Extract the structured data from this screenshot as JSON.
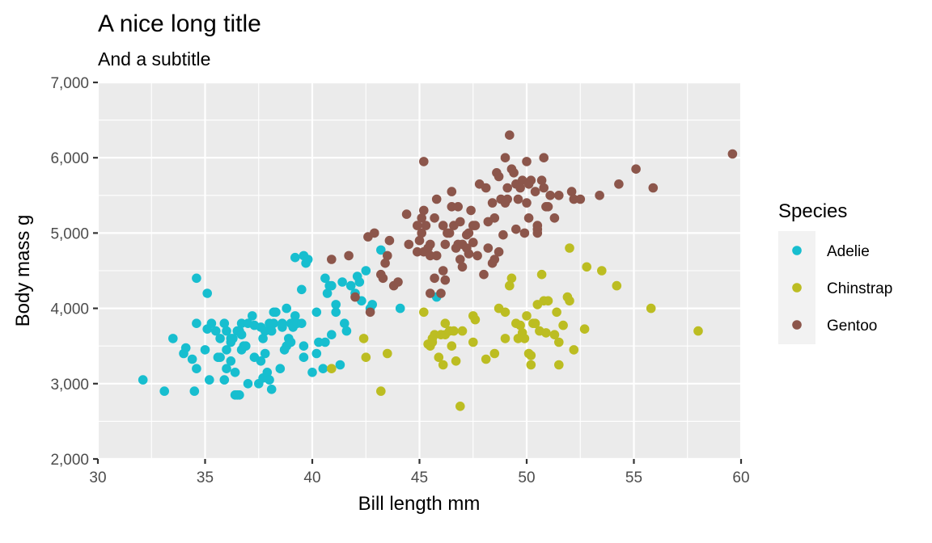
{
  "chart_data": {
    "type": "scatter",
    "title": "A nice long title",
    "subtitle": "And a subtitle",
    "xlabel": "Bill length mm",
    "ylabel": "Body mass g",
    "xlim": [
      30,
      60
    ],
    "ylim": [
      2000,
      7000
    ],
    "x_ticks": [
      30,
      35,
      40,
      45,
      50,
      55,
      60
    ],
    "x_tick_labels": [
      "30",
      "35",
      "40",
      "45",
      "50",
      "55",
      "60"
    ],
    "y_ticks": [
      2000,
      3000,
      4000,
      5000,
      6000,
      7000
    ],
    "y_tick_labels": [
      "2,000",
      "3,000",
      "4,000",
      "5,000",
      "6,000",
      "7,000"
    ],
    "grid": true,
    "legend": {
      "title": "Species",
      "placement": "right"
    },
    "series": [
      {
        "name": "Adelie",
        "color": "#17becf",
        "points": [
          [
            32.1,
            3050
          ],
          [
            33.1,
            2900
          ],
          [
            33.5,
            3600
          ],
          [
            34.0,
            3400
          ],
          [
            34.1,
            3475
          ],
          [
            34.4,
            3325
          ],
          [
            34.5,
            2900
          ],
          [
            34.6,
            3200
          ],
          [
            34.6,
            4400
          ],
          [
            34.6,
            3800
          ],
          [
            35.0,
            3450
          ],
          [
            35.1,
            4200
          ],
          [
            35.1,
            3725
          ],
          [
            35.2,
            3050
          ],
          [
            35.3,
            3800
          ],
          [
            35.5,
            3700
          ],
          [
            35.6,
            3350
          ],
          [
            35.7,
            3600
          ],
          [
            35.7,
            3350
          ],
          [
            35.9,
            3800
          ],
          [
            35.9,
            3050
          ],
          [
            36.0,
            3450
          ],
          [
            36.0,
            3700
          ],
          [
            36.0,
            3200
          ],
          [
            36.2,
            3300
          ],
          [
            36.2,
            3550
          ],
          [
            36.2,
            3600
          ],
          [
            36.3,
            3600
          ],
          [
            36.4,
            3150
          ],
          [
            36.4,
            2850
          ],
          [
            36.5,
            3700
          ],
          [
            36.5,
            2850
          ],
          [
            36.6,
            3700
          ],
          [
            36.6,
            2850
          ],
          [
            36.7,
            3450
          ],
          [
            36.7,
            3800
          ],
          [
            36.8,
            3500
          ],
          [
            36.9,
            3500
          ],
          [
            37.0,
            3000
          ],
          [
            37.0,
            3800
          ],
          [
            37.2,
            3900
          ],
          [
            37.3,
            3775
          ],
          [
            37.3,
            3350
          ],
          [
            37.5,
            3000
          ],
          [
            37.6,
            3300
          ],
          [
            37.6,
            3750
          ],
          [
            37.7,
            3600
          ],
          [
            37.7,
            3075
          ],
          [
            37.8,
            3700
          ],
          [
            37.8,
            3400
          ],
          [
            37.9,
            3150
          ],
          [
            38.0,
            3050
          ],
          [
            38.0,
            3800
          ],
          [
            38.1,
            2925
          ],
          [
            38.1,
            3700
          ],
          [
            38.2,
            3800
          ],
          [
            38.2,
            3950
          ],
          [
            38.3,
            3950
          ],
          [
            38.5,
            3200
          ],
          [
            38.6,
            3750
          ],
          [
            38.6,
            3800
          ],
          [
            38.8,
            3500
          ],
          [
            38.8,
            4000
          ],
          [
            38.9,
            3600
          ],
          [
            39.0,
            3550
          ],
          [
            39.0,
            3800
          ],
          [
            39.1,
            3750
          ],
          [
            39.2,
            4675
          ],
          [
            39.2,
            3900
          ],
          [
            39.3,
            3800
          ],
          [
            39.5,
            4250
          ],
          [
            39.5,
            3800
          ],
          [
            39.6,
            3500
          ],
          [
            39.6,
            4700
          ],
          [
            39.7,
            4600
          ],
          [
            39.8,
            4650
          ],
          [
            40.2,
            3400
          ],
          [
            40.2,
            3950
          ],
          [
            40.3,
            3550
          ],
          [
            40.5,
            3200
          ],
          [
            40.6,
            4400
          ],
          [
            40.6,
            3550
          ],
          [
            40.7,
            4200
          ],
          [
            40.8,
            4300
          ],
          [
            40.9,
            4300
          ],
          [
            40.9,
            3650
          ],
          [
            41.1,
            3950
          ],
          [
            41.1,
            4050
          ],
          [
            41.3,
            3250
          ],
          [
            41.4,
            4350
          ],
          [
            41.5,
            3800
          ],
          [
            41.6,
            3700
          ],
          [
            41.8,
            4300
          ],
          [
            42.0,
            4200
          ],
          [
            42.2,
            4350
          ],
          [
            42.3,
            4100
          ],
          [
            42.5,
            4500
          ],
          [
            42.7,
            4000
          ],
          [
            42.8,
            4050
          ],
          [
            43.2,
            4775
          ],
          [
            44.1,
            4000
          ],
          [
            45.8,
            4150
          ],
          [
            39.6,
            3350
          ],
          [
            42.1,
            4425
          ],
          [
            36.7,
            3650
          ],
          [
            38.7,
            3450
          ],
          [
            40.0,
            3150
          ]
        ]
      },
      {
        "name": "Chinstrap",
        "color": "#bcbd22",
        "points": [
          [
            40.9,
            3200
          ],
          [
            42.4,
            3600
          ],
          [
            42.5,
            3350
          ],
          [
            43.2,
            2900
          ],
          [
            43.5,
            3400
          ],
          [
            45.2,
            3950
          ],
          [
            45.4,
            3525
          ],
          [
            45.5,
            3500
          ],
          [
            45.6,
            3550
          ],
          [
            45.7,
            3650
          ],
          [
            45.9,
            3350
          ],
          [
            46.0,
            3650
          ],
          [
            46.1,
            3250
          ],
          [
            46.2,
            3650
          ],
          [
            46.4,
            3700
          ],
          [
            46.5,
            3500
          ],
          [
            46.6,
            3700
          ],
          [
            46.7,
            3300
          ],
          [
            46.9,
            2700
          ],
          [
            47.0,
            3700
          ],
          [
            47.5,
            3900
          ],
          [
            47.6,
            3850
          ],
          [
            48.1,
            3325
          ],
          [
            48.5,
            3400
          ],
          [
            49.0,
            3950
          ],
          [
            49.2,
            4300
          ],
          [
            49.3,
            4400
          ],
          [
            49.5,
            3800
          ],
          [
            49.6,
            3600
          ],
          [
            49.7,
            3775
          ],
          [
            49.8,
            3675
          ],
          [
            50.0,
            3900
          ],
          [
            50.1,
            3400
          ],
          [
            50.2,
            3375
          ],
          [
            50.3,
            3800
          ],
          [
            50.5,
            4050
          ],
          [
            50.6,
            3700
          ],
          [
            50.7,
            4450
          ],
          [
            50.8,
            4100
          ],
          [
            50.9,
            3675
          ],
          [
            51.0,
            4100
          ],
          [
            51.3,
            3650
          ],
          [
            51.4,
            3950
          ],
          [
            51.5,
            3250
          ],
          [
            51.7,
            3775
          ],
          [
            52.0,
            4100
          ],
          [
            52.0,
            4800
          ],
          [
            52.2,
            3450
          ],
          [
            52.7,
            3725
          ],
          [
            52.8,
            4550
          ],
          [
            53.5,
            4500
          ],
          [
            54.2,
            4300
          ],
          [
            55.8,
            4000
          ],
          [
            58.0,
            3700
          ],
          [
            49.0,
            3600
          ],
          [
            50.4,
            3800
          ],
          [
            51.9,
            4150
          ],
          [
            45.6,
            3600
          ],
          [
            46.2,
            3800
          ],
          [
            47.5,
            3550
          ],
          [
            48.7,
            4000
          ],
          [
            49.9,
            3600
          ],
          [
            51.5,
            3550
          ],
          [
            50.2,
            3250
          ]
        ]
      },
      {
        "name": "Gentoo",
        "color": "#8c564b",
        "points": [
          [
            40.9,
            4650
          ],
          [
            41.7,
            4700
          ],
          [
            42.0,
            4150
          ],
          [
            42.6,
            4950
          ],
          [
            42.7,
            3950
          ],
          [
            42.9,
            5000
          ],
          [
            43.2,
            4450
          ],
          [
            43.3,
            4400
          ],
          [
            43.4,
            4600
          ],
          [
            43.5,
            4700
          ],
          [
            43.6,
            4900
          ],
          [
            43.8,
            4300
          ],
          [
            44.0,
            4350
          ],
          [
            44.4,
            5250
          ],
          [
            44.5,
            4850
          ],
          [
            44.9,
            5100
          ],
          [
            45.0,
            4900
          ],
          [
            45.1,
            5000
          ],
          [
            45.2,
            5950
          ],
          [
            45.2,
            5300
          ],
          [
            45.2,
            4750
          ],
          [
            45.3,
            5100
          ],
          [
            45.4,
            4800
          ],
          [
            45.5,
            4200
          ],
          [
            45.5,
            4850
          ],
          [
            45.7,
            4400
          ],
          [
            45.8,
            4700
          ],
          [
            46.1,
            5100
          ],
          [
            46.2,
            4375
          ],
          [
            46.4,
            5000
          ],
          [
            46.5,
            5350
          ],
          [
            46.6,
            5100
          ],
          [
            46.8,
            5350
          ],
          [
            47.0,
            4850
          ],
          [
            47.2,
            4800
          ],
          [
            47.3,
            5000
          ],
          [
            47.4,
            5300
          ],
          [
            47.5,
            5100
          ],
          [
            47.8,
            5650
          ],
          [
            48.1,
            5600
          ],
          [
            48.2,
            4800
          ],
          [
            48.4,
            5400
          ],
          [
            48.5,
            5200
          ],
          [
            48.6,
            5800
          ],
          [
            48.7,
            5750
          ],
          [
            48.8,
            5450
          ],
          [
            49.0,
            5400
          ],
          [
            49.1,
            5600
          ],
          [
            49.2,
            6300
          ],
          [
            49.3,
            5850
          ],
          [
            49.4,
            5800
          ],
          [
            49.5,
            5650
          ],
          [
            49.6,
            5450
          ],
          [
            49.8,
            5700
          ],
          [
            50.0,
            5400
          ],
          [
            50.1,
            5200
          ],
          [
            50.2,
            5700
          ],
          [
            50.4,
            5550
          ],
          [
            50.5,
            5050
          ],
          [
            50.8,
            5600
          ],
          [
            51.1,
            5500
          ],
          [
            51.5,
            5500
          ],
          [
            52.1,
            5550
          ],
          [
            52.2,
            5450
          ],
          [
            52.5,
            5450
          ],
          [
            53.4,
            5500
          ],
          [
            54.3,
            5650
          ],
          [
            55.1,
            5850
          ],
          [
            55.9,
            5600
          ],
          [
            59.6,
            6050
          ],
          [
            46.8,
            4850
          ],
          [
            47.5,
            4875
          ],
          [
            46.9,
            4650
          ],
          [
            48.4,
            4600
          ],
          [
            49.9,
            5000
          ],
          [
            50.5,
            5000
          ],
          [
            45.7,
            5200
          ],
          [
            46.3,
            5000
          ],
          [
            47.2,
            4975
          ],
          [
            48.9,
            4975
          ],
          [
            44.9,
            4750
          ],
          [
            45.1,
            5200
          ],
          [
            45.8,
            5450
          ],
          [
            46.5,
            5550
          ],
          [
            47.6,
            5100
          ],
          [
            48.5,
            4650
          ],
          [
            49.1,
            5450
          ],
          [
            50.0,
            5950
          ],
          [
            50.7,
            5700
          ],
          [
            51.3,
            5200
          ],
          [
            46.2,
            4850
          ],
          [
            47.0,
            4550
          ],
          [
            48.0,
            4450
          ],
          [
            49.7,
            5600
          ],
          [
            49.5,
            5050
          ],
          [
            50.9,
            5350
          ],
          [
            49.0,
            6000
          ],
          [
            50.8,
            6000
          ],
          [
            46.0,
            4200
          ],
          [
            45.5,
            4700
          ],
          [
            46.7,
            4800
          ],
          [
            47.7,
            4700
          ],
          [
            48.7,
            4750
          ],
          [
            50.1,
            5650
          ],
          [
            46.1,
            4500
          ],
          [
            47.3,
            4725
          ],
          [
            48.2,
            5150
          ],
          [
            46.9,
            5150
          ],
          [
            50.5,
            5100
          ],
          [
            51.0,
            5350
          ]
        ]
      }
    ]
  }
}
